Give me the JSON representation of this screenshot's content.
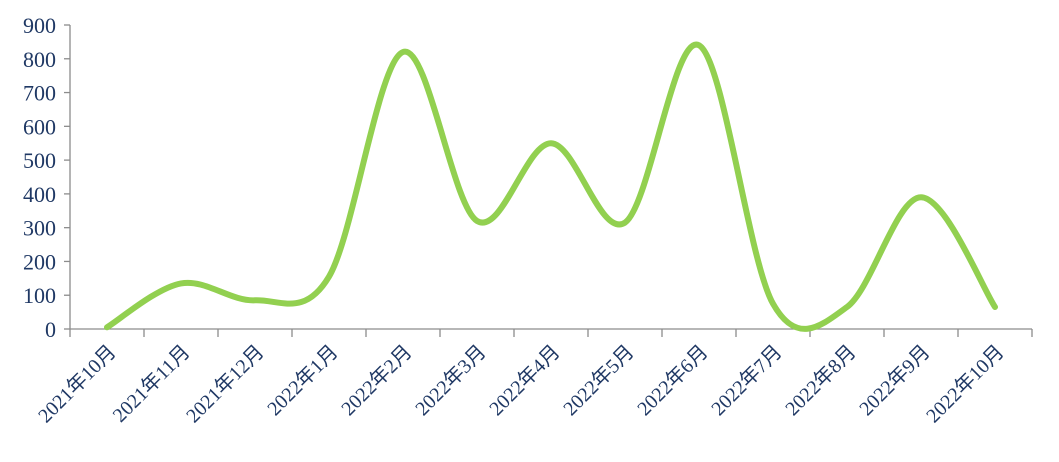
{
  "chart_data": {
    "type": "line",
    "smooth": true,
    "categories": [
      "2021年10月",
      "2021年11月",
      "2021年12月",
      "2022年1月",
      "2022年2月",
      "2022年3月",
      "2022年4月",
      "2022年5月",
      "2022年6月",
      "2022年7月",
      "2022年8月",
      "2022年9月",
      "2022年10月"
    ],
    "series": [
      {
        "values": [
          5,
          135,
          85,
          155,
          820,
          320,
          550,
          315,
          840,
          75,
          65,
          390,
          65
        ],
        "color": "#92d050"
      }
    ],
    "ylim": [
      0,
      900
    ],
    "yticks": [
      0,
      100,
      200,
      300,
      400,
      500,
      600,
      700,
      800,
      900
    ],
    "title": "",
    "xlabel": "",
    "ylabel": "",
    "grid": false,
    "legend": "none"
  }
}
